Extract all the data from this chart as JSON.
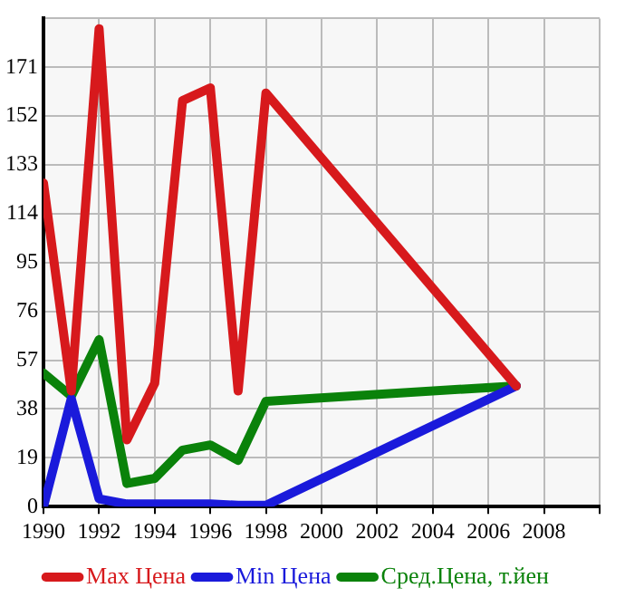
{
  "chart_data": {
    "type": "line",
    "x": [
      1990,
      1991,
      1992,
      1993,
      1994,
      1995,
      1996,
      1997,
      1998,
      2007
    ],
    "series": [
      {
        "name": "Max Цена",
        "color": "#d7191c",
        "values": [
          126,
          45,
          186,
          26,
          48,
          158,
          163,
          45,
          161,
          47
        ]
      },
      {
        "name": "Min Цена",
        "color": "#1a1adb",
        "values": [
          0,
          42,
          3,
          1,
          1,
          1,
          1,
          0.5,
          0.5,
          47
        ]
      },
      {
        "name": "Сред.Цена, т.йен",
        "color": "#0a820a",
        "values": [
          52,
          43,
          65,
          9,
          11,
          22,
          24,
          18,
          41,
          47
        ]
      }
    ],
    "xlim": [
      1990,
      2010
    ],
    "xticks": [
      1990,
      1992,
      1994,
      1996,
      1998,
      2000,
      2002,
      2004,
      2006,
      2008,
      {
        "value": 2010,
        "label": null
      }
    ],
    "ylim": [
      0,
      190
    ],
    "yticks": [
      0,
      19,
      38,
      57,
      76,
      95,
      114,
      133,
      152,
      171,
      {
        "value": 190,
        "label": null
      }
    ],
    "grid": true,
    "legend": "bottom",
    "marker": "none",
    "line_style": "solid"
  }
}
